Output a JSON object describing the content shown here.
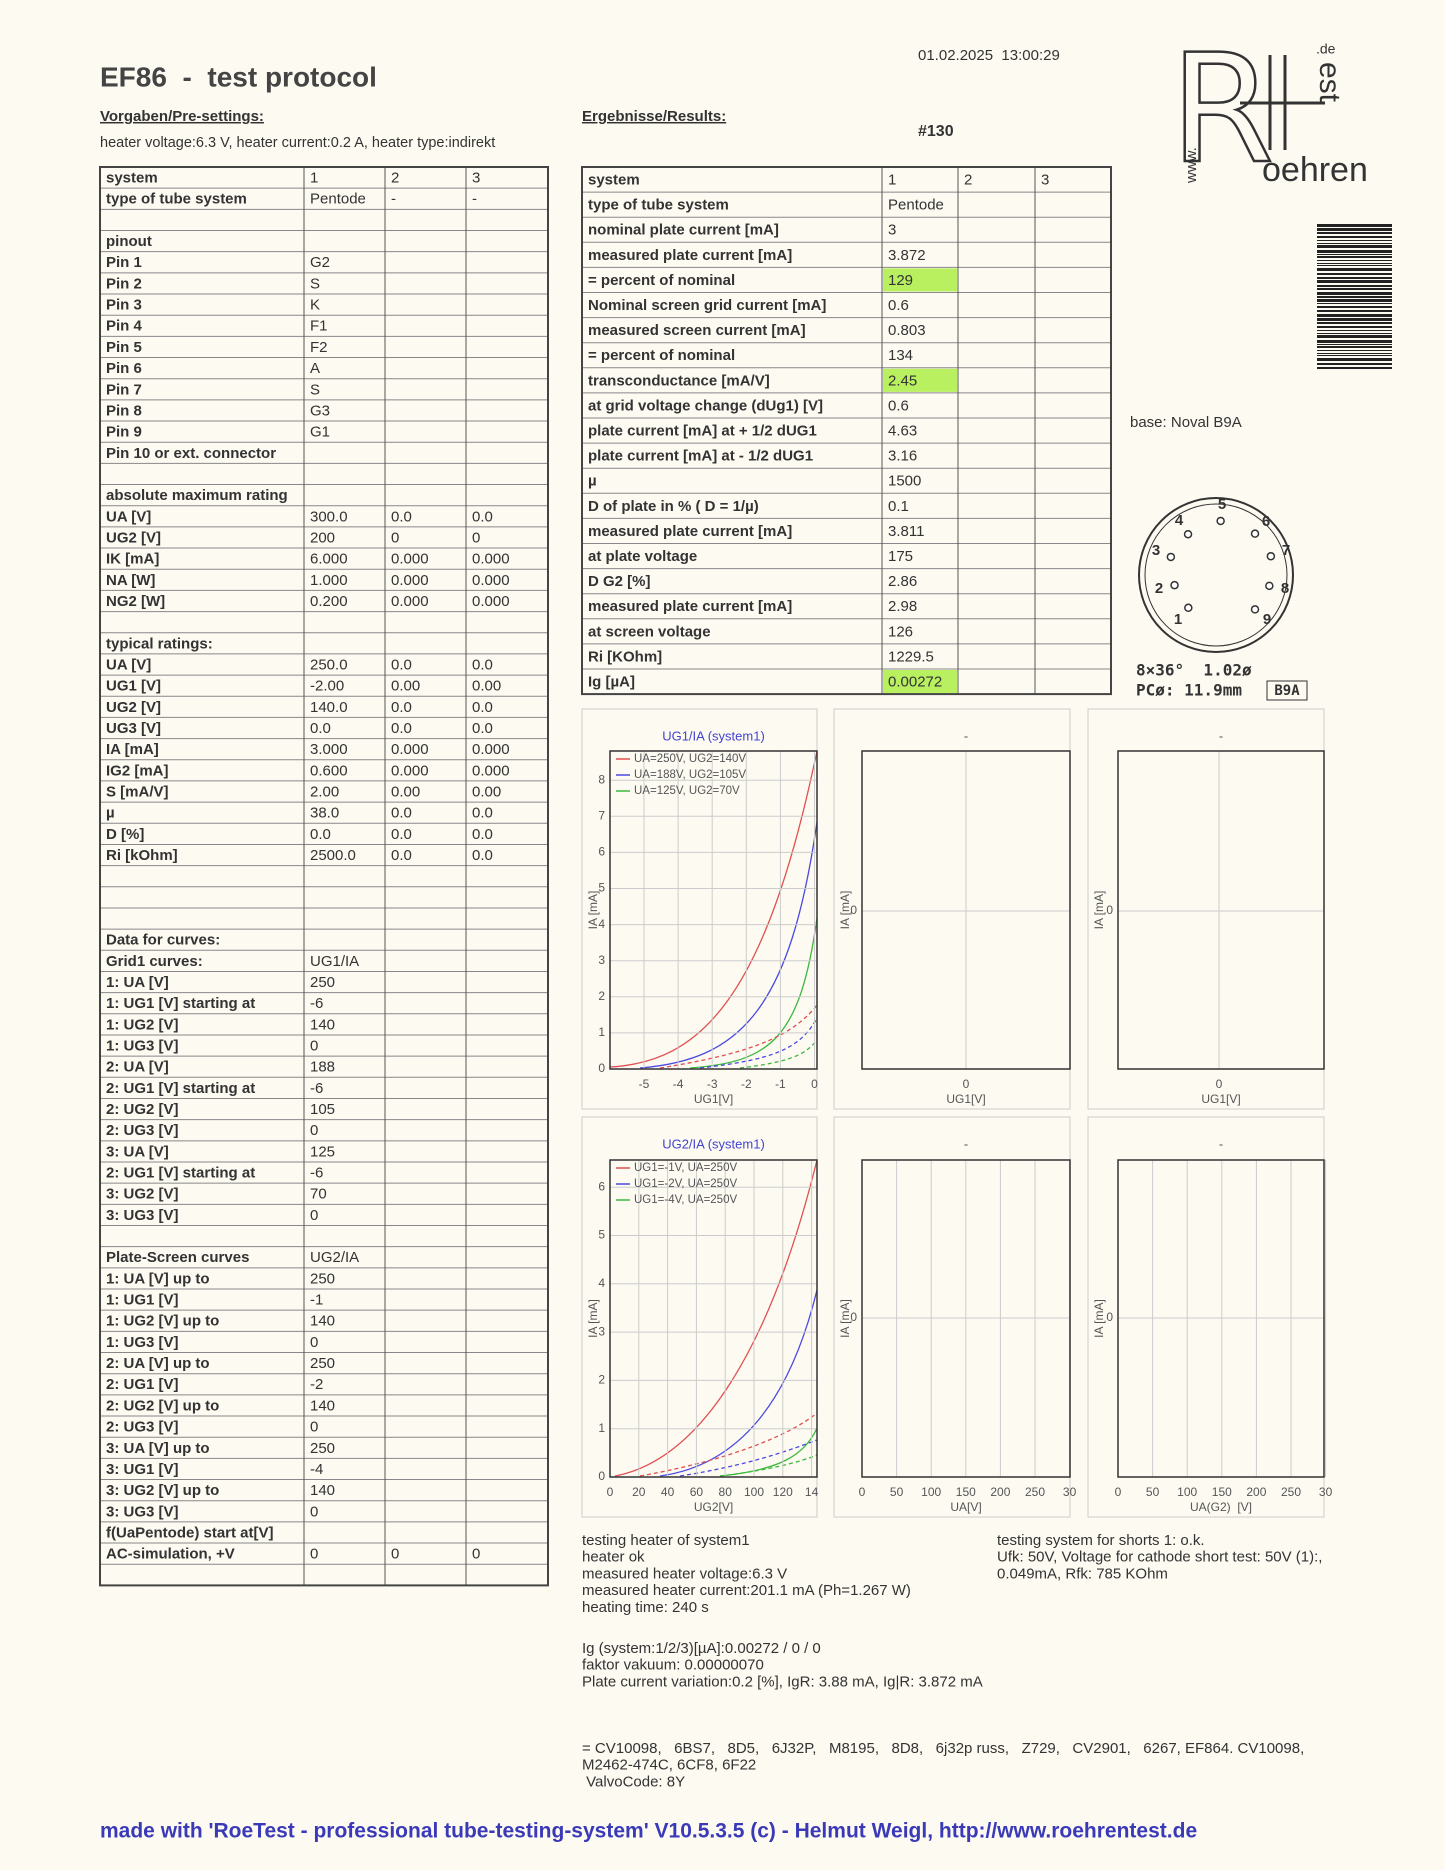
{
  "header": {
    "title": "EF86  -  test protocol",
    "datetime": "01.02.2025  13:00:29",
    "number": "#130"
  },
  "presettings": {
    "heading": "Vorgaben/Pre-settings:",
    "text": "heater voltage:6.3 V, heater current:0.2 A, heater type:indirekt"
  },
  "results_heading": "Ergebnisse/Results:",
  "logo": {
    "R": "R",
    "oehren": "oehren",
    "www": "www.",
    "est": "est",
    "de": ".de"
  },
  "pre_table": {
    "rows": [
      [
        "system",
        "1",
        "2",
        "3"
      ],
      [
        "type of tube system",
        "Pentode",
        "-",
        "-"
      ],
      [],
      [
        "pinout"
      ],
      [
        "Pin 1",
        "G2"
      ],
      [
        "Pin 2",
        "S"
      ],
      [
        "Pin 3",
        "K"
      ],
      [
        "Pin 4",
        "F1"
      ],
      [
        "Pin 5",
        "F2"
      ],
      [
        "Pin 6",
        "A"
      ],
      [
        "Pin 7",
        "S"
      ],
      [
        "Pin 8",
        "G3"
      ],
      [
        "Pin 9",
        "G1"
      ],
      [
        "Pin 10 or ext. connector"
      ],
      [],
      [
        "absolute maximum rating"
      ],
      [
        "UA [V]",
        "300.0",
        "0.0",
        "0.0"
      ],
      [
        "UG2 [V]",
        "200",
        "0",
        "0"
      ],
      [
        "IK [mA]",
        "6.000",
        "0.000",
        "0.000"
      ],
      [
        "NA [W]",
        "1.000",
        "0.000",
        "0.000"
      ],
      [
        "NG2 [W]",
        "0.200",
        "0.000",
        "0.000"
      ],
      [],
      [
        "typical ratings:"
      ],
      [
        "UA [V]",
        "250.0",
        "0.0",
        "0.0"
      ],
      [
        "UG1 [V]",
        "-2.00",
        "0.00",
        "0.00"
      ],
      [
        "UG2 [V]",
        "140.0",
        "0.0",
        "0.0"
      ],
      [
        "UG3 [V]",
        "0.0",
        "0.0",
        "0.0"
      ],
      [
        "IA [mA]",
        "3.000",
        "0.000",
        "0.000"
      ],
      [
        "IG2 [mA]",
        "0.600",
        "0.000",
        "0.000"
      ],
      [
        "S [mA/V]",
        "2.00",
        "0.00",
        "0.00"
      ],
      [
        "µ",
        "38.0",
        "0.0",
        "0.0"
      ],
      [
        "D [%]",
        "0.0",
        "0.0",
        "0.0"
      ],
      [
        "Ri [kOhm]",
        "2500.0",
        "0.0",
        "0.0"
      ],
      [],
      [],
      [],
      [
        "Data for curves:"
      ],
      [
        "Grid1 curves:",
        "UG1/IA"
      ],
      [
        "1: UA [V]",
        "250"
      ],
      [
        "1: UG1 [V] starting at",
        "-6"
      ],
      [
        "1: UG2 [V]",
        "140"
      ],
      [
        "1: UG3 [V]",
        "0"
      ],
      [
        "2: UA [V]",
        "188"
      ],
      [
        "2: UG1 [V] starting at",
        "-6"
      ],
      [
        "2: UG2 [V]",
        "105"
      ],
      [
        "2: UG3 [V]",
        "0"
      ],
      [
        "3: UA [V]",
        "125"
      ],
      [
        "2: UG1 [V] starting at",
        "-6"
      ],
      [
        "3: UG2 [V]",
        "70"
      ],
      [
        "3: UG3 [V]",
        "0"
      ],
      [],
      [
        "Plate-Screen curves",
        "UG2/IA"
      ],
      [
        "1: UA [V] up to",
        "250"
      ],
      [
        "1: UG1 [V]",
        "-1"
      ],
      [
        "1: UG2 [V] up to",
        "140"
      ],
      [
        "1: UG3 [V]",
        "0"
      ],
      [
        "2: UA [V] up to",
        "250"
      ],
      [
        "2: UG1 [V]",
        "-2"
      ],
      [
        "2: UG2 [V] up to",
        "140"
      ],
      [
        "2: UG3 [V]",
        "0"
      ],
      [
        "3: UA [V] up to",
        "250"
      ],
      [
        "3: UG1 [V]",
        "-4"
      ],
      [
        "3: UG2 [V] up to",
        "140"
      ],
      [
        "3: UG3 [V]",
        "0"
      ],
      [
        "f(UaPentode) start at[V]"
      ],
      [
        "AC-simulation, +V",
        "0",
        "0",
        "0"
      ],
      []
    ]
  },
  "results_table": {
    "highlight_color": "#b8f060",
    "highlighted_rows": [
      4,
      8,
      20
    ],
    "rows": [
      [
        "system",
        "1",
        "2",
        "3"
      ],
      [
        "type of tube system",
        "Pentode"
      ],
      [
        "nominal plate current [mA]",
        "3"
      ],
      [
        "measured plate current [mA]",
        "3.872"
      ],
      [
        "= percent of nominal",
        "129"
      ],
      [
        "Nominal screen grid current [mA]",
        "0.6"
      ],
      [
        "measured screen current [mA]",
        "0.803"
      ],
      [
        "= percent of nominal",
        "134"
      ],
      [
        "transconductance [mA/V]",
        "2.45"
      ],
      [
        "at grid voltage change (dUg1) [V]",
        "0.6"
      ],
      [
        "plate current [mA] at + 1/2 dUG1",
        "4.63"
      ],
      [
        "plate current [mA] at - 1/2 dUG1",
        "3.16"
      ],
      [
        "µ",
        "1500"
      ],
      [
        "D of plate in % ( D = 1/µ)",
        "0.1"
      ],
      [
        "measured plate current [mA]",
        "3.811"
      ],
      [
        "at plate voltage",
        "175"
      ],
      [
        "D G2 [%]",
        "2.86"
      ],
      [
        "measured plate current [mA]",
        "2.98"
      ],
      [
        "at screen voltage",
        "126"
      ],
      [
        "Ri [KOhm]",
        "1229.5"
      ],
      [
        "Ig [µA]",
        "0.00272"
      ]
    ]
  },
  "base": {
    "label": "base: Noval B9A",
    "pins": [
      "1",
      "2",
      "3",
      "4",
      "5",
      "6",
      "7",
      "8",
      "9"
    ],
    "spec": "8×36°  1.02ø",
    "pc": "PCø: 11.9mm",
    "box": "B9A"
  },
  "plots": [
    {
      "title": "UG1/IA (system1)",
      "ylabel": "IA [mA]",
      "xlabel": "UG1[V]",
      "yticks": [
        "0",
        "1",
        "2",
        "3",
        "4",
        "5",
        "6",
        "7",
        "8"
      ],
      "xticks": [
        "-5",
        "-4",
        "-3",
        "-2",
        "-1",
        "0"
      ],
      "legend": [
        "UA=250V, UG2=140V",
        "UA=188V, UG2=105V",
        "UA=125V, UG2=70V"
      ]
    },
    {
      "title": "-",
      "ylabel": "IA [mA]",
      "xlabel": "UG1[V]",
      "yticks": [
        "0"
      ],
      "xticks": [
        "0"
      ]
    },
    {
      "title": "-",
      "ylabel": "IA [mA]",
      "xlabel": "UG1[V]",
      "yticks": [
        "0"
      ],
      "xticks": [
        "0"
      ]
    },
    {
      "title": "UG2/IA (system1)",
      "ylabel": "IA [mA]",
      "xlabel": "UG2[V]",
      "yticks": [
        "0",
        "1",
        "2",
        "3",
        "4",
        "5",
        "6"
      ],
      "xticks": [
        "0",
        "20",
        "40",
        "60",
        "80",
        "100",
        "120",
        "14"
      ],
      "legend": [
        "UG1=-1V, UA=250V",
        "UG1=-2V, UA=250V",
        "UG1=-4V, UA=250V"
      ]
    },
    {
      "title": "-",
      "ylabel": "IA [mA]",
      "xlabel": "UA[V]",
      "yticks": [
        "0"
      ],
      "xticks": [
        "0",
        "50",
        "100",
        "150",
        "200",
        "250",
        "30"
      ]
    },
    {
      "title": "-",
      "ylabel": "IA [mA]",
      "xlabel": "UA(G2)  [V]",
      "yticks": [
        "0"
      ],
      "xticks": [
        "0",
        "50",
        "100",
        "150",
        "200",
        "250",
        "30"
      ]
    }
  ],
  "notes": {
    "heater": [
      "testing heater of system1",
      "heater ok",
      "measured heater voltage:6.3 V",
      "measured heater current:201.1 mA (Ph=1.267 W)",
      "heating time: 240 s"
    ],
    "shorts": [
      "testing system for shorts 1: o.k.",
      "Ufk: 50V, Voltage for cathode short test: 50V (1):,",
      "0.049mA, Rfk: 785 KOhm"
    ],
    "grid": [
      "Ig (system:1/2/3)[µA]:0.00272 / 0 / 0",
      "faktor vakuum: 0.00000070",
      "Plate current variation:0.2 [%], IgR: 3.88 mA, Ig|R: 3.872 mA"
    ],
    "equivalents": [
      "= CV10098,   6BS7,   8D5,   6J32P,   M8195,   8D8,   6j32p russ,   Z729,   CV2901,   6267, EF864. CV10098,",
      "M2462-474C, 6CF8, 6F22",
      " ValvoCode: 8Y"
    ]
  },
  "footer": "made with 'RoeTest - professional tube-testing-system' V10.5.3.5 (c) - Helmut Weigl, http://www.roehrentest.de"
}
